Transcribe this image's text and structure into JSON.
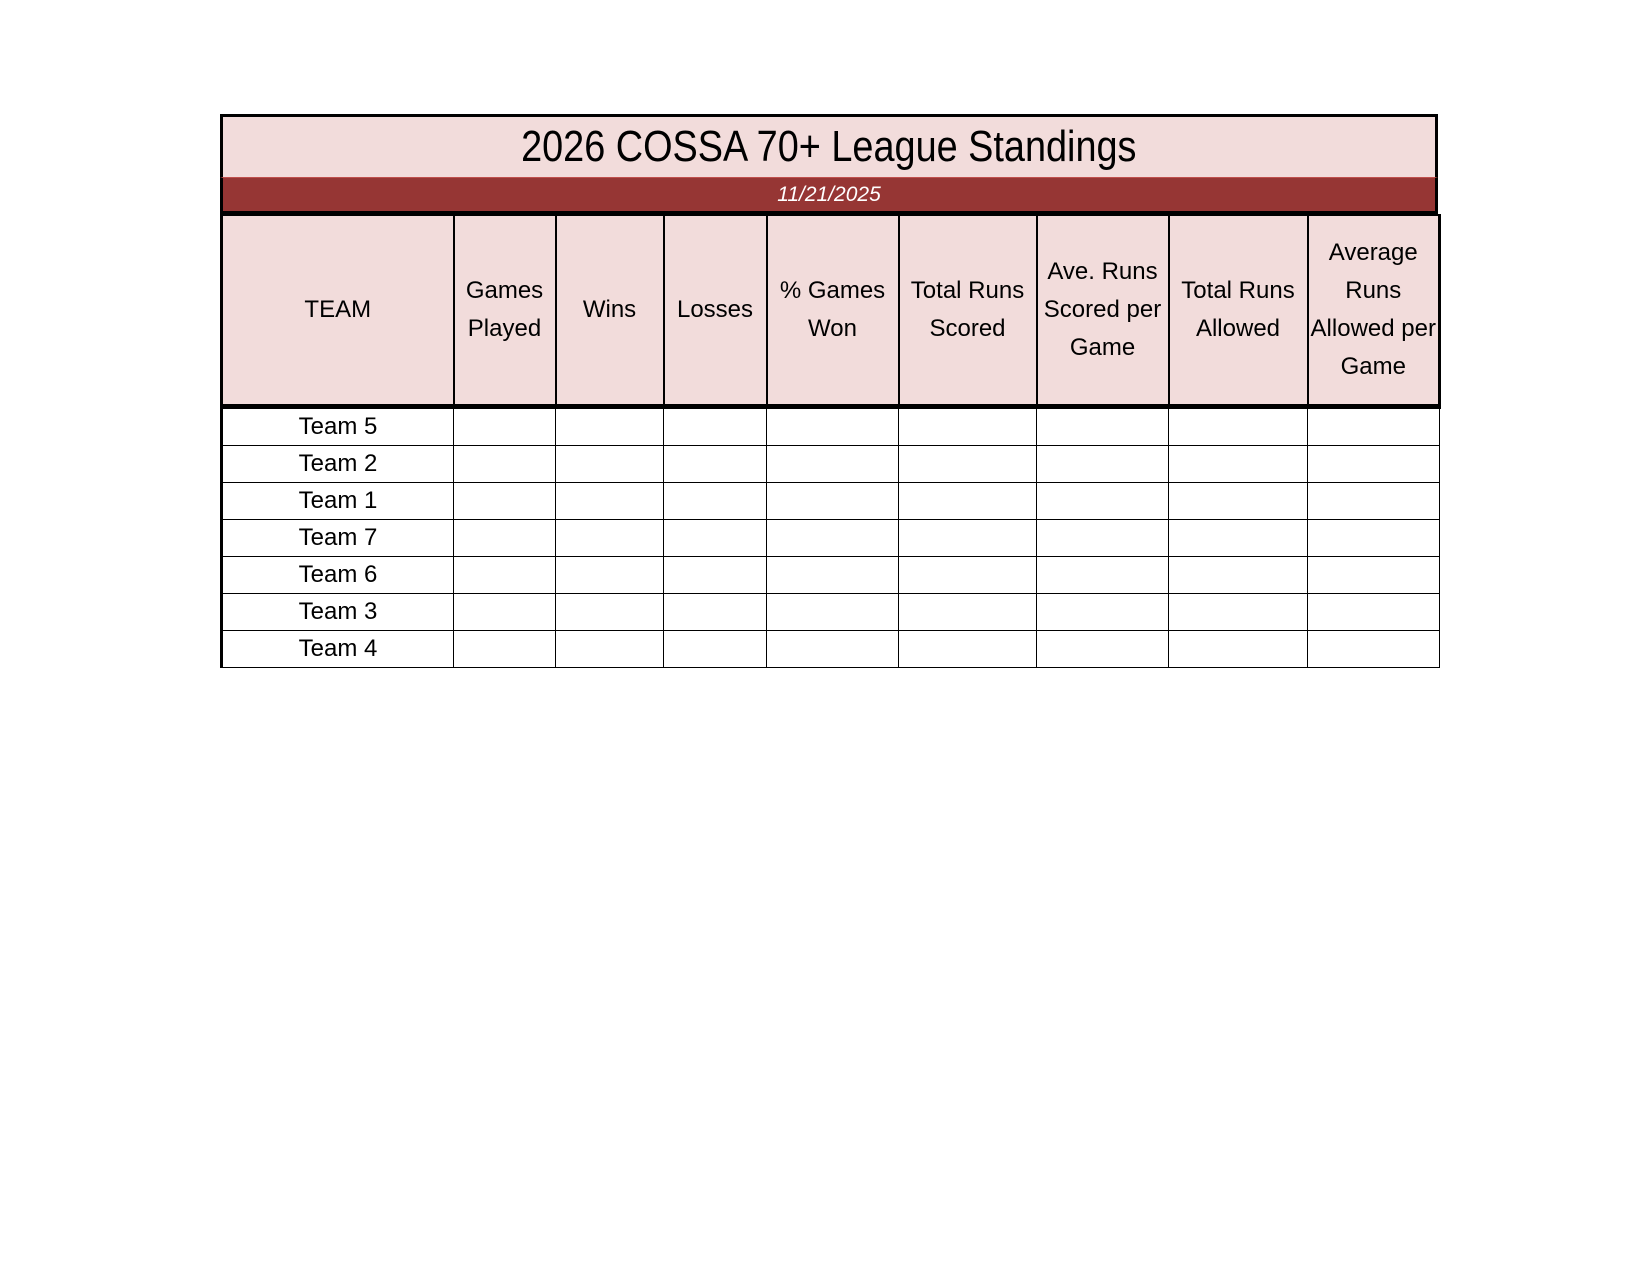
{
  "title": "2026 COSSA 70+ League Standings",
  "date": "11/21/2025",
  "colors": {
    "header_fill": "#f2dcdb",
    "date_band": "#963634"
  },
  "columns": [
    "TEAM",
    "Games Played",
    "Wins",
    "Losses",
    "% Games Won",
    "Total Runs Scored",
    "Ave. Runs Scored per Game",
    "Total Runs Allowed",
    "Average Runs Allowed per Game"
  ],
  "rows": [
    {
      "team": "Team 5"
    },
    {
      "team": "Team 2"
    },
    {
      "team": "Team 1"
    },
    {
      "team": "Team 7"
    },
    {
      "team": "Team 6"
    },
    {
      "team": "Team 3"
    },
    {
      "team": "Team 4"
    }
  ]
}
